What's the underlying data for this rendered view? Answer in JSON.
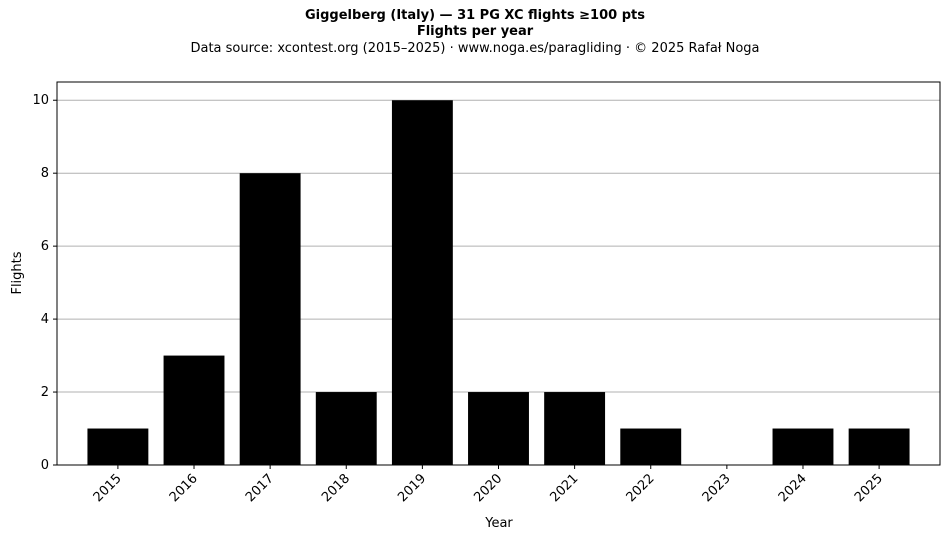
{
  "chart_data": {
    "type": "bar",
    "title": "Giggelberg (Italy)  —  31 PG XC flights ≥100 pts",
    "subtitle": "Flights per year",
    "source_note": "Data source: xcontest.org (2015–2025)  ·  www.noga.es/paragliding  ·  © 2025 Rafał Noga",
    "xlabel": "Year",
    "ylabel": "Flights",
    "categories": [
      "2015",
      "2016",
      "2017",
      "2018",
      "2019",
      "2020",
      "2021",
      "2022",
      "2023",
      "2024",
      "2025"
    ],
    "values": [
      1,
      3,
      8,
      2,
      10,
      2,
      2,
      1,
      0,
      1,
      1
    ],
    "ylim": [
      0,
      10.5
    ],
    "yticks": [
      0,
      2,
      4,
      6,
      8,
      10
    ],
    "grid": "y",
    "bar_color": "#000000",
    "grid_color": "#b0b0b0"
  }
}
